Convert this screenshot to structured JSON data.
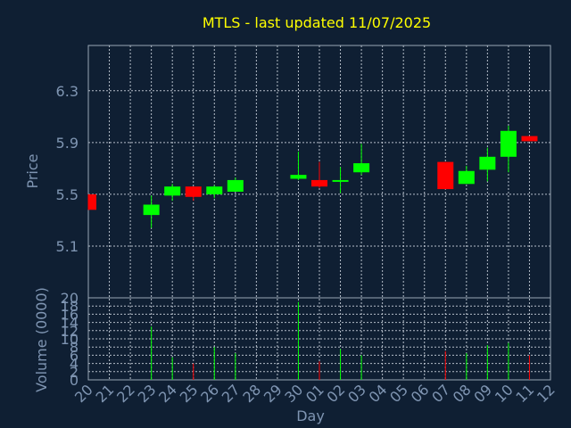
{
  "chart_data": {
    "type": "candlestick",
    "title": "MTLS - last updated 11/07/2025",
    "ylabel": "Price",
    "volume_label": "Volume (0000)",
    "xlabel": "Day",
    "y_ticks": [
      "5.1",
      "5.5",
      "5.9",
      "6.3"
    ],
    "volume_ticks": [
      "0",
      "2",
      "4",
      "6",
      "8",
      "10",
      "12",
      "14",
      "16",
      "18",
      "20"
    ],
    "x_ticks": [
      "20",
      "21",
      "22",
      "23",
      "24",
      "25",
      "26",
      "27",
      "28",
      "29",
      "30",
      "01",
      "02",
      "03",
      "04",
      "05",
      "06",
      "07",
      "08",
      "09",
      "10",
      "11",
      "12"
    ],
    "ylim": [
      4.7,
      6.65
    ],
    "volume_ylim": [
      0,
      20
    ],
    "colors": {
      "up": "#00ff00",
      "down": "#ff0000",
      "title": "#ffff00",
      "axis_text": "#7f95b2",
      "background": "#0f1f33"
    },
    "candles": [
      {
        "day": "20",
        "open": 5.5,
        "close": 5.38,
        "high": 5.5,
        "low": 5.38,
        "volume": 0
      },
      {
        "day": "23",
        "open": 5.34,
        "close": 5.42,
        "high": 5.49,
        "low": 5.24,
        "volume": 13
      },
      {
        "day": "24",
        "open": 5.49,
        "close": 5.56,
        "high": 5.58,
        "low": 5.45,
        "volume": 5.5
      },
      {
        "day": "25",
        "open": 5.56,
        "close": 5.48,
        "high": 5.56,
        "low": 5.45,
        "volume": 4
      },
      {
        "day": "26",
        "open": 5.5,
        "close": 5.56,
        "high": 5.57,
        "low": 5.47,
        "volume": 8
      },
      {
        "day": "27",
        "open": 5.52,
        "close": 5.61,
        "high": 5.63,
        "low": 5.52,
        "volume": 6.5
      },
      {
        "day": "30",
        "open": 5.62,
        "close": 5.65,
        "high": 5.83,
        "low": 5.61,
        "volume": 19
      },
      {
        "day": "01",
        "open": 5.61,
        "close": 5.56,
        "high": 5.75,
        "low": 5.55,
        "volume": 4.5
      },
      {
        "day": "02",
        "open": 5.6,
        "close": 5.61,
        "high": 5.71,
        "low": 5.51,
        "volume": 7.5
      },
      {
        "day": "03",
        "open": 5.67,
        "close": 5.74,
        "high": 5.89,
        "low": 5.65,
        "volume": 6
      },
      {
        "day": "07",
        "open": 5.75,
        "close": 5.54,
        "high": 5.75,
        "low": 5.54,
        "volume": 7
      },
      {
        "day": "08",
        "open": 5.58,
        "close": 5.68,
        "high": 5.72,
        "low": 5.58,
        "volume": 6.5
      },
      {
        "day": "09",
        "open": 5.69,
        "close": 5.79,
        "high": 5.86,
        "low": 5.6,
        "volume": 8.5
      },
      {
        "day": "10",
        "open": 5.79,
        "close": 5.99,
        "high": 6.03,
        "low": 5.67,
        "volume": 9
      },
      {
        "day": "11",
        "open": 5.95,
        "close": 5.91,
        "high": 5.95,
        "low": 5.91,
        "volume": 6
      }
    ],
    "grid": true
  }
}
